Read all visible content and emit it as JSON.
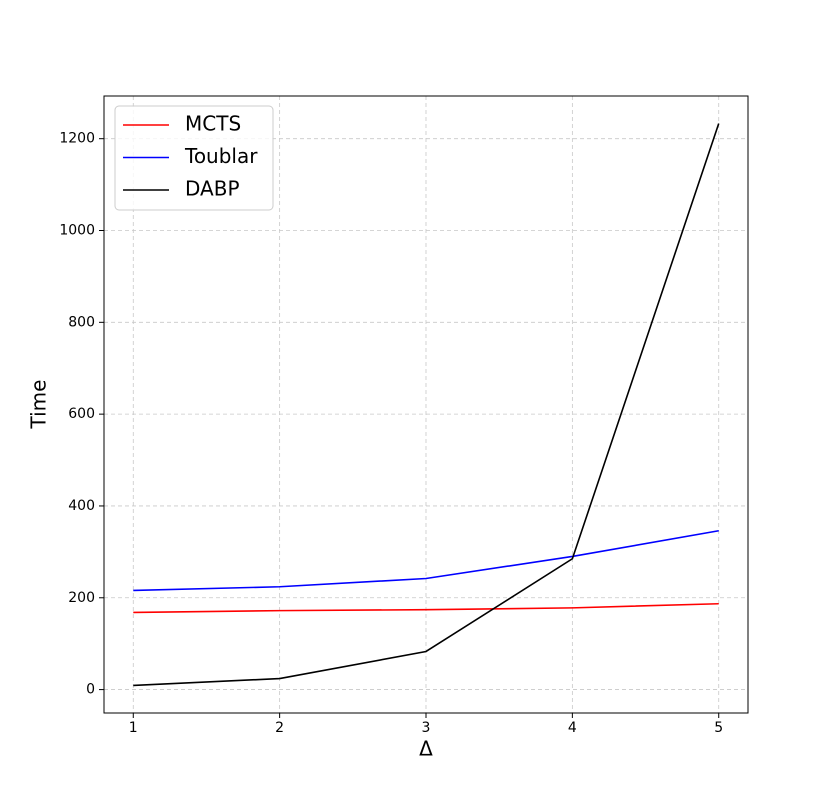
{
  "chart_data": {
    "type": "line",
    "xlabel": "Δ",
    "ylabel": "Time",
    "x": [
      1,
      2,
      3,
      4,
      5
    ],
    "series": [
      {
        "name": "MCTS",
        "color": "#ff0000",
        "values": [
          168,
          172,
          174,
          178,
          187
        ]
      },
      {
        "name": "Toublar",
        "color": "#0000ff",
        "values": [
          216,
          224,
          242,
          290,
          346
        ]
      },
      {
        "name": "DABP",
        "color": "#000000",
        "values": [
          9,
          24,
          83,
          285,
          1233
        ]
      }
    ],
    "xlim": [
      0.8,
      5.2
    ],
    "ylim": [
      -51,
      1293
    ],
    "xticks": [
      1,
      2,
      3,
      4,
      5
    ],
    "yticks": [
      0,
      200,
      400,
      600,
      800,
      1000,
      1200
    ],
    "grid": true,
    "legend": "upper left"
  }
}
